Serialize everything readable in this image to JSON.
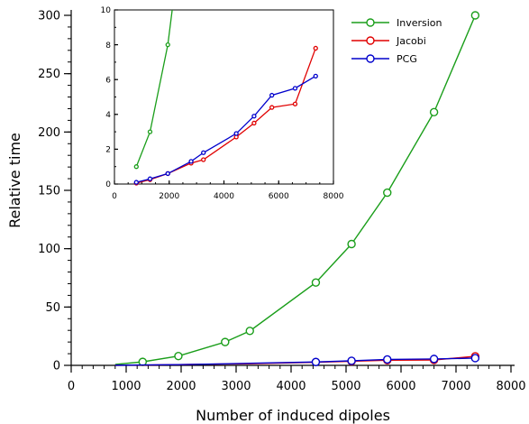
{
  "chart_data": [
    {
      "id": "main",
      "type": "line",
      "xlabel": "Number of induced dipoles",
      "ylabel": "Relative time",
      "xlim": [
        0,
        8000
      ],
      "ylim": [
        0,
        300
      ],
      "xticks": [
        0,
        1000,
        2000,
        3000,
        4000,
        5000,
        6000,
        7000,
        8000
      ],
      "yticks": [
        0,
        50,
        100,
        150,
        200,
        250,
        300
      ],
      "grid": false,
      "legend": "top-right",
      "series": [
        {
          "name": "Inversion",
          "color": "#1a9e1a",
          "x": [
            800,
            1300,
            1950,
            2800,
            3250,
            4450,
            5100,
            5750,
            6600,
            7350
          ],
          "y": [
            0.8,
            3,
            8,
            20,
            29.5,
            71,
            104,
            148,
            217,
            300
          ],
          "markers_x": [
            1300,
            1950,
            2800,
            3250,
            4450,
            5100,
            5750,
            6600,
            7350
          ]
        },
        {
          "name": "Jacobi",
          "color": "#e00000",
          "x": [
            800,
            1300,
            1950,
            2800,
            3250,
            4450,
            5100,
            5750,
            6600,
            7350
          ],
          "y": [
            0.05,
            0.25,
            0.6,
            1.2,
            1.4,
            2.7,
            3.5,
            4.4,
            4.6,
            7.8
          ],
          "markers_x": [
            5100,
            5750,
            6600,
            7350
          ]
        },
        {
          "name": "PCG",
          "color": "#0000cc",
          "x": [
            800,
            1300,
            1950,
            2800,
            3250,
            4450,
            5100,
            5750,
            6600,
            7350
          ],
          "y": [
            0.1,
            0.3,
            0.6,
            1.3,
            1.8,
            2.9,
            3.9,
            5.1,
            5.5,
            6.2
          ],
          "markers_x": [
            4450,
            5100,
            5750,
            6600,
            7350
          ]
        }
      ]
    },
    {
      "id": "inset",
      "type": "line",
      "xlabel": "",
      "ylabel": "",
      "xlim": [
        0,
        8000
      ],
      "ylim": [
        0,
        10
      ],
      "xticks": [
        0,
        2000,
        4000,
        6000,
        8000
      ],
      "yticks": [
        0,
        2,
        4,
        6,
        8,
        10
      ],
      "grid": false,
      "series": [
        {
          "name": "Inversion",
          "color": "#1a9e1a",
          "x": [
            800,
            1300,
            1950,
            2110
          ],
          "y": [
            1,
            3,
            8,
            10
          ],
          "markers_x": [
            800,
            1300,
            1950
          ]
        },
        {
          "name": "Jacobi",
          "color": "#e00000",
          "x": [
            800,
            1300,
            1950,
            2800,
            3250,
            4450,
            5100,
            5750,
            6600,
            7350
          ],
          "y": [
            0.05,
            0.25,
            0.6,
            1.2,
            1.4,
            2.7,
            3.5,
            4.4,
            4.6,
            7.8
          ],
          "markers_x": [
            800,
            1300,
            1950,
            2800,
            3250,
            4450,
            5100,
            5750,
            6600,
            7350
          ]
        },
        {
          "name": "PCG",
          "color": "#0000cc",
          "x": [
            800,
            1300,
            1950,
            2800,
            3250,
            4450,
            5100,
            5750,
            6600,
            7350
          ],
          "y": [
            0.1,
            0.3,
            0.6,
            1.3,
            1.8,
            2.9,
            3.9,
            5.1,
            5.5,
            6.2
          ],
          "markers_x": [
            800,
            1300,
            1950,
            2800,
            3250,
            4450,
            5100,
            5750,
            6600,
            7350
          ]
        }
      ]
    }
  ]
}
